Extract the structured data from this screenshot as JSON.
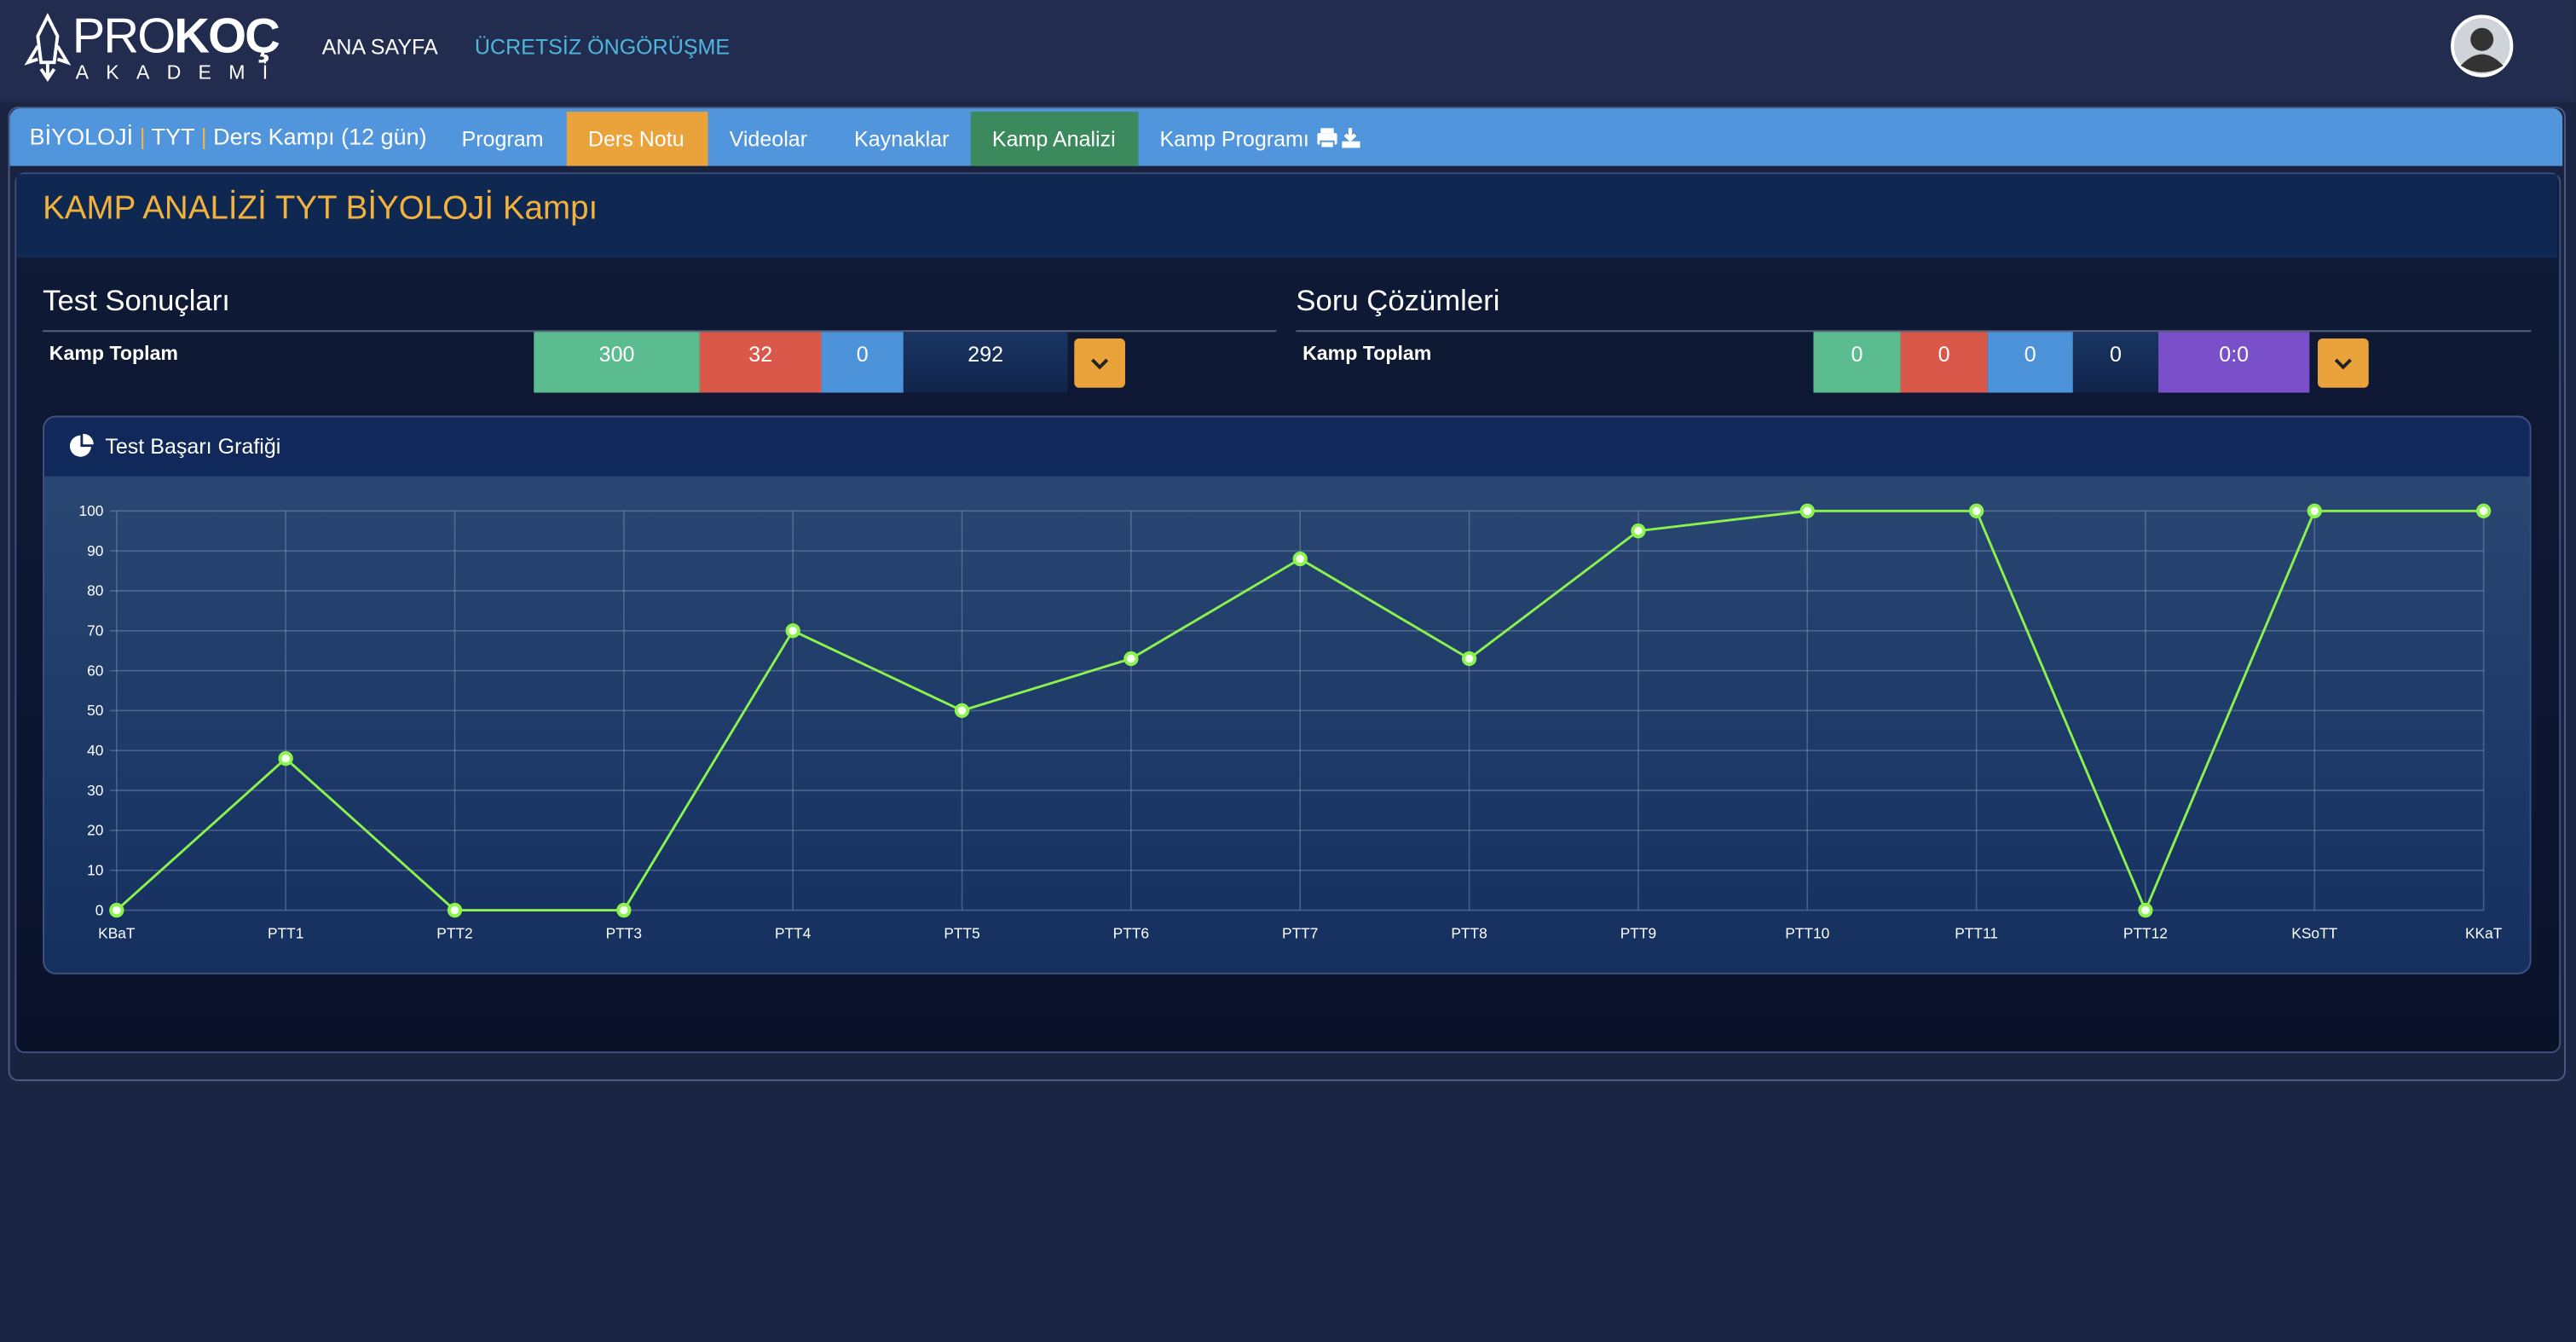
{
  "header": {
    "logo": {
      "pro": "PRO",
      "koc": "KOÇ",
      "sub": "AKADEMİ"
    },
    "nav": [
      "ANA SAYFA",
      "ÜCRETSİZ ÖNGÖRÜŞME"
    ]
  },
  "breadcrumb": {
    "subject": "BİYOLOJİ",
    "separator": "|",
    "exam": "TYT",
    "camp": "Ders Kampı (12 gün)"
  },
  "tabs": [
    "Program",
    "Ders Notu",
    "Videolar",
    "Kaynaklar",
    "Kamp Analizi",
    "Kamp Programı"
  ],
  "page_title": "KAMP ANALİZİ TYT BİYOLOJİ Kampı",
  "test_results": {
    "title": "Test Sonuçları",
    "row_label": "Kamp Toplam",
    "values": [
      300,
      32,
      0,
      292
    ]
  },
  "question_solutions": {
    "title": "Soru Çözümleri",
    "row_label": "Kamp Toplam",
    "values": [
      0,
      0,
      0,
      0,
      "0:0"
    ]
  },
  "chart_card_title": "Test Başarı Grafiği",
  "chart_data": {
    "type": "line",
    "categories": [
      "KBaT",
      "PTT1",
      "PTT2",
      "PTT3",
      "PTT4",
      "PTT5",
      "PTT6",
      "PTT7",
      "PTT8",
      "PTT9",
      "PTT10",
      "PTT11",
      "PTT12",
      "KSoTT",
      "KKaT"
    ],
    "values": [
      0,
      38,
      0,
      0,
      70,
      50,
      63,
      88,
      63,
      95,
      100,
      100,
      0,
      100,
      100
    ],
    "color": "#8cf24c",
    "ylim": [
      0,
      100
    ],
    "yticks": [
      0,
      10,
      20,
      30,
      40,
      50,
      60,
      70,
      80,
      90,
      100
    ],
    "grid": true
  }
}
